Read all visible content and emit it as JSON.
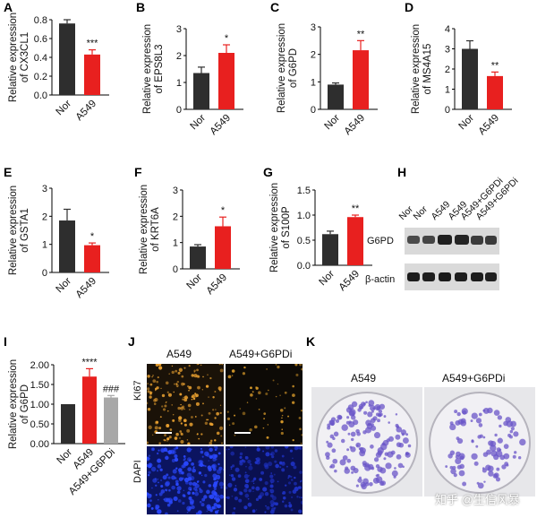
{
  "colors": {
    "nor": "#2e2e2e",
    "a549": "#e8201f",
    "inhib": "#a8a8a8"
  },
  "panels": {
    "A": "A",
    "B": "B",
    "C": "C",
    "D": "D",
    "E": "E",
    "F": "F",
    "G": "G",
    "H": "H",
    "I": "I",
    "J": "J",
    "K": "K"
  },
  "chart_data": [
    {
      "id": "A",
      "type": "bar",
      "categories": [
        "Nor",
        "A549"
      ],
      "values": [
        0.76,
        0.43
      ],
      "errors": [
        0.04,
        0.05
      ],
      "ylabel": "Relative expression\nof CX3CL1",
      "ylim": [
        0,
        0.8
      ],
      "yticks": [
        "0.0",
        "0.2",
        "0.4",
        "0.6",
        "0.8"
      ],
      "sig": [
        "",
        "***"
      ]
    },
    {
      "id": "B",
      "type": "bar",
      "categories": [
        "Nor",
        "A549"
      ],
      "values": [
        1.35,
        2.1
      ],
      "errors": [
        0.22,
        0.3
      ],
      "ylabel": "Relative expression\nof EPS8L3",
      "ylim": [
        0,
        3
      ],
      "yticks": [
        "0",
        "1",
        "2",
        "3"
      ],
      "sig": [
        "",
        "*"
      ]
    },
    {
      "id": "C",
      "type": "bar",
      "categories": [
        "Nor",
        "A549"
      ],
      "values": [
        0.9,
        2.15
      ],
      "errors": [
        0.06,
        0.35
      ],
      "ylabel": "Relative expression\nof G6PD",
      "ylim": [
        0,
        3
      ],
      "yticks": [
        "0",
        "1",
        "2",
        "3"
      ],
      "sig": [
        "",
        "**"
      ]
    },
    {
      "id": "D",
      "type": "bar",
      "categories": [
        "Nor",
        "A549"
      ],
      "values": [
        3.0,
        1.65
      ],
      "errors": [
        0.4,
        0.2
      ],
      "ylabel": "Relative expression\nof MS4A15",
      "ylim": [
        0,
        4
      ],
      "yticks": [
        "0",
        "1",
        "2",
        "3",
        "4"
      ],
      "sig": [
        "",
        "**"
      ]
    },
    {
      "id": "E",
      "type": "bar",
      "categories": [
        "Nor",
        "A549"
      ],
      "values": [
        1.85,
        0.97
      ],
      "errors": [
        0.4,
        0.08
      ],
      "ylabel": "Relative expression\nof GSTA1",
      "ylim": [
        0,
        3
      ],
      "yticks": [
        "0",
        "1",
        "2",
        "3"
      ],
      "sig": [
        "",
        "*"
      ]
    },
    {
      "id": "F",
      "type": "bar",
      "categories": [
        "Nor",
        "A549"
      ],
      "values": [
        0.85,
        1.62
      ],
      "errors": [
        0.07,
        0.35
      ],
      "ylabel": "Relative expression\nof KRT6A",
      "ylim": [
        0,
        3
      ],
      "yticks": [
        "0",
        "1",
        "2",
        "3"
      ],
      "sig": [
        "",
        "*"
      ]
    },
    {
      "id": "G",
      "type": "bar",
      "categories": [
        "Nor",
        "A549"
      ],
      "values": [
        0.62,
        0.96
      ],
      "errors": [
        0.06,
        0.04
      ],
      "ylabel": "Relative expression\nof S100P",
      "ylim": [
        0,
        1.5
      ],
      "yticks": [
        "0.0",
        "0.5",
        "1.0",
        "1.5"
      ],
      "sig": [
        "",
        "**"
      ]
    },
    {
      "id": "I",
      "type": "bar",
      "categories": [
        "Nor",
        "A549",
        "A549+G6PDi"
      ],
      "values": [
        1.0,
        1.7,
        1.17
      ],
      "errors": [
        0.0,
        0.2,
        0.05
      ],
      "ylabel": "Relative expression\nof G6PD",
      "ylim": [
        0,
        2.0
      ],
      "yticks": [
        "0.00",
        "0.50",
        "1.00",
        "1.50",
        "2.00"
      ],
      "sig": [
        "",
        "****",
        "###"
      ]
    }
  ],
  "blot": {
    "lanes": [
      "Nor",
      "Nor",
      "A549",
      "A549",
      "A549+G6PDi",
      "A549+G6PDi"
    ],
    "rows": [
      "G6PD",
      "β-actin"
    ]
  },
  "if_panel": {
    "columns": [
      "A549",
      "A549+G6PDi"
    ],
    "rows": [
      "KI67",
      "DAPI"
    ]
  },
  "colony": {
    "columns": [
      "A549",
      "A549+G6PDi"
    ]
  },
  "watermark": "知乎 @生信风暴"
}
